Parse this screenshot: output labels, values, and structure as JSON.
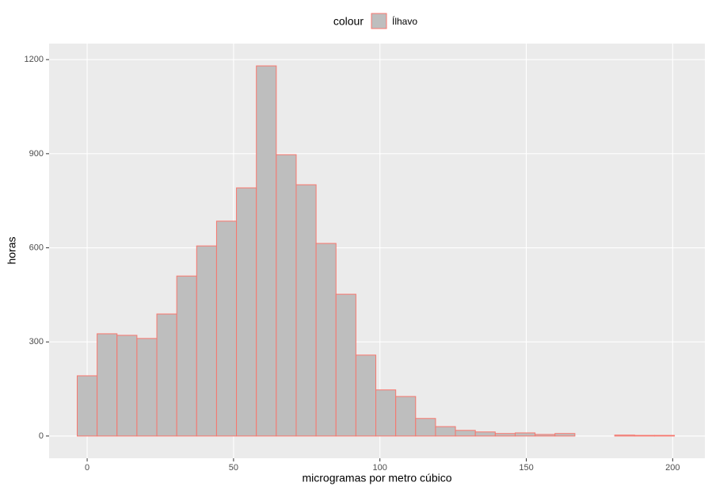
{
  "chart_data": {
    "type": "histogram",
    "x_label": "microgramas por metro cúbico",
    "y_label": "horas",
    "legend_title": "colour",
    "bins": [
      -3.4,
      3.4,
      10.2,
      17,
      23.8,
      30.6,
      37.4,
      44.2,
      51,
      57.8,
      64.6,
      71.4,
      78.2,
      85,
      91.8,
      98.6,
      105.4,
      112.2,
      119,
      125.8,
      132.6,
      139.4,
      146.2,
      153,
      159.8,
      166.6,
      173.4,
      180.2,
      187,
      193.8,
      200.6
    ],
    "series": [
      {
        "name": "Ílhavo",
        "fill": "#bebebe",
        "color": "#f8766d",
        "values": [
          192,
          326,
          321,
          311,
          389,
          510,
          606,
          685,
          791,
          1180,
          897,
          801,
          614,
          452,
          258,
          147,
          126,
          56,
          30,
          18,
          13,
          8,
          10,
          5,
          8,
          0,
          0,
          3,
          2,
          2
        ]
      }
    ],
    "xlim": [
      -13,
      211
    ],
    "xticks": [
      0,
      50,
      100,
      150,
      200
    ],
    "ylim": [
      -71,
      1251
    ],
    "yticks": [
      0,
      300,
      600,
      900,
      1200
    ],
    "grid": true
  }
}
